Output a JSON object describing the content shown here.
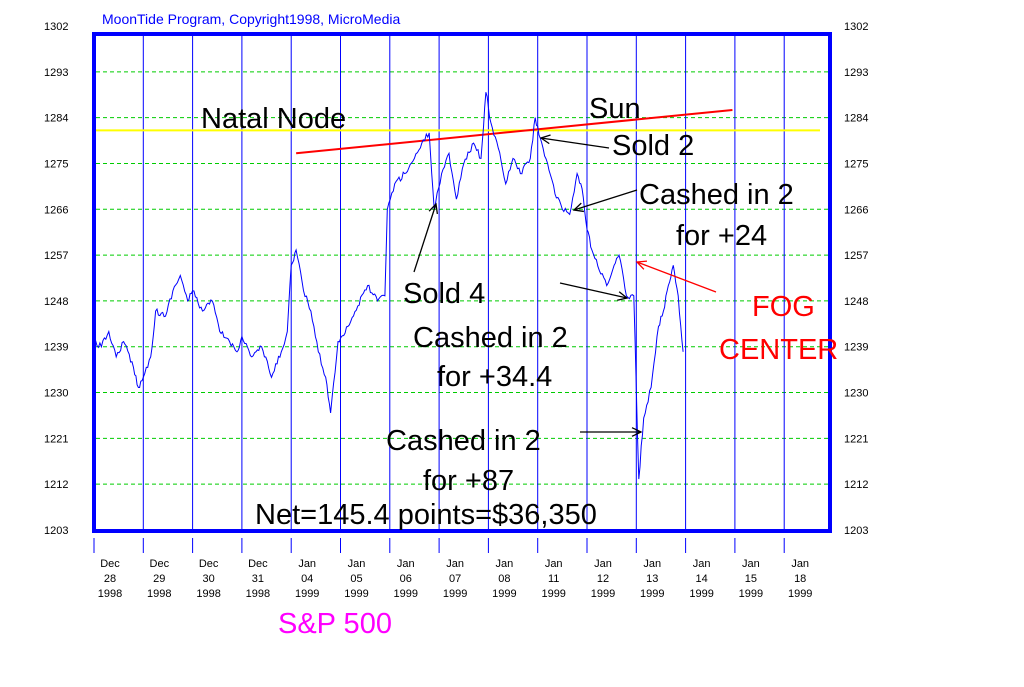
{
  "chart_data": {
    "type": "line",
    "title": "MoonTide Program, Copyright1998, MicroMedia",
    "title_color": "#0000ff",
    "ylim": [
      1203,
      1302
    ],
    "yticks": [
      1302,
      1293,
      1284,
      1275,
      1266,
      1257,
      1248,
      1239,
      1230,
      1221,
      1212,
      1203
    ],
    "xticks": [
      {
        "mon": "Dec",
        "day": "28",
        "yr": "1998"
      },
      {
        "mon": "Dec",
        "day": "29",
        "yr": "1998"
      },
      {
        "mon": "Dec",
        "day": "30",
        "yr": "1998"
      },
      {
        "mon": "Dec",
        "day": "31",
        "yr": "1998"
      },
      {
        "mon": "Jan",
        "day": "04",
        "yr": "1999"
      },
      {
        "mon": "Jan",
        "day": "05",
        "yr": "1999"
      },
      {
        "mon": "Jan",
        "day": "06",
        "yr": "1999"
      },
      {
        "mon": "Jan",
        "day": "07",
        "yr": "1999"
      },
      {
        "mon": "Jan",
        "day": "08",
        "yr": "1999"
      },
      {
        "mon": "Jan",
        "day": "11",
        "yr": "1999"
      },
      {
        "mon": "Jan",
        "day": "12",
        "yr": "1999"
      },
      {
        "mon": "Jan",
        "day": "13",
        "yr": "1999"
      },
      {
        "mon": "Jan",
        "day": "14",
        "yr": "1999"
      },
      {
        "mon": "Jan",
        "day": "15",
        "yr": "1999"
      },
      {
        "mon": "Jan",
        "day": "18",
        "yr": "1999"
      }
    ],
    "grid": true,
    "series": [
      {
        "name": "S&P 500",
        "color": "#0000ff",
        "points": [
          [
            0.0,
            1240
          ],
          [
            0.15,
            1239
          ],
          [
            0.3,
            1242
          ],
          [
            0.45,
            1237
          ],
          [
            0.6,
            1240
          ],
          [
            0.8,
            1235
          ],
          [
            0.9,
            1231
          ],
          [
            1.0,
            1233
          ],
          [
            1.15,
            1237
          ],
          [
            1.25,
            1246
          ],
          [
            1.45,
            1245
          ],
          [
            1.6,
            1250
          ],
          [
            1.75,
            1253
          ],
          [
            1.9,
            1248
          ],
          [
            2.0,
            1250
          ],
          [
            2.2,
            1246
          ],
          [
            2.4,
            1248
          ],
          [
            2.55,
            1242
          ],
          [
            2.75,
            1240
          ],
          [
            2.9,
            1238
          ],
          [
            3.0,
            1241
          ],
          [
            3.2,
            1237
          ],
          [
            3.4,
            1239
          ],
          [
            3.6,
            1233
          ],
          [
            3.8,
            1238
          ],
          [
            3.92,
            1242
          ],
          [
            4.0,
            1255
          ],
          [
            4.1,
            1258
          ],
          [
            4.25,
            1250
          ],
          [
            4.4,
            1246
          ],
          [
            4.55,
            1238
          ],
          [
            4.7,
            1233
          ],
          [
            4.8,
            1226
          ],
          [
            4.95,
            1240
          ],
          [
            5.15,
            1243
          ],
          [
            5.35,
            1247
          ],
          [
            5.55,
            1251
          ],
          [
            5.75,
            1248
          ],
          [
            5.9,
            1249
          ],
          [
            5.95,
            1266
          ],
          [
            6.1,
            1271
          ],
          [
            6.3,
            1273
          ],
          [
            6.5,
            1276
          ],
          [
            6.65,
            1279
          ],
          [
            6.8,
            1281
          ],
          [
            6.9,
            1266
          ],
          [
            7.05,
            1273
          ],
          [
            7.2,
            1277
          ],
          [
            7.35,
            1268
          ],
          [
            7.5,
            1275
          ],
          [
            7.7,
            1279
          ],
          [
            7.85,
            1276
          ],
          [
            7.95,
            1289
          ],
          [
            8.05,
            1283
          ],
          [
            8.2,
            1278
          ],
          [
            8.35,
            1271
          ],
          [
            8.5,
            1276
          ],
          [
            8.65,
            1273
          ],
          [
            8.85,
            1276
          ],
          [
            8.95,
            1284
          ],
          [
            9.05,
            1280
          ],
          [
            9.2,
            1275
          ],
          [
            9.35,
            1269
          ],
          [
            9.5,
            1266
          ],
          [
            9.65,
            1265
          ],
          [
            9.8,
            1273
          ],
          [
            9.9,
            1270
          ],
          [
            10.0,
            1262
          ],
          [
            10.1,
            1258
          ],
          [
            10.25,
            1254
          ],
          [
            10.4,
            1251
          ],
          [
            10.55,
            1255
          ],
          [
            10.65,
            1257
          ],
          [
            10.8,
            1249
          ],
          [
            10.95,
            1249
          ],
          [
            11.05,
            1213
          ],
          [
            11.15,
            1225
          ],
          [
            11.3,
            1231
          ],
          [
            11.45,
            1243
          ],
          [
            11.55,
            1246
          ],
          [
            11.65,
            1251
          ],
          [
            11.75,
            1255
          ],
          [
            11.85,
            1249
          ],
          [
            11.95,
            1238
          ]
        ]
      }
    ],
    "lines": {
      "natal_node": {
        "label": "Natal Node",
        "y": 1281.5,
        "color": "#ffff00"
      },
      "sun": {
        "label": "Sun",
        "from": [
          4.1,
          1277
        ],
        "to": [
          12.95,
          1285.5
        ],
        "color": "#ff0000"
      }
    },
    "annotations": [
      {
        "text": "Sold 4"
      },
      {
        "text": "Sold 2"
      },
      {
        "text": "Cashed in 2"
      },
      {
        "text": "for +24"
      },
      {
        "text": "Cashed in 2"
      },
      {
        "text": "for +34.4"
      },
      {
        "text": "Cashed in 2"
      },
      {
        "text": "for +87"
      },
      {
        "text": "Net=145.4 points=$36,350"
      }
    ],
    "fog": {
      "line1": "FOG",
      "line2": "CENTER",
      "color": "#ff0000"
    },
    "index_label": {
      "text": "S&P 500",
      "color": "#ff00ff"
    }
  }
}
